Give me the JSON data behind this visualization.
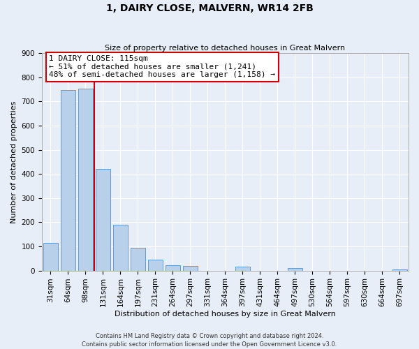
{
  "title": "1, DAIRY CLOSE, MALVERN, WR14 2FB",
  "subtitle": "Size of property relative to detached houses in Great Malvern",
  "xlabel": "Distribution of detached houses by size in Great Malvern",
  "ylabel": "Number of detached properties",
  "bar_labels": [
    "31sqm",
    "64sqm",
    "98sqm",
    "131sqm",
    "164sqm",
    "197sqm",
    "231sqm",
    "264sqm",
    "297sqm",
    "331sqm",
    "364sqm",
    "397sqm",
    "431sqm",
    "464sqm",
    "497sqm",
    "530sqm",
    "564sqm",
    "597sqm",
    "630sqm",
    "664sqm",
    "697sqm"
  ],
  "bar_values": [
    113,
    748,
    752,
    420,
    190,
    93,
    46,
    22,
    18,
    0,
    0,
    17,
    0,
    0,
    10,
    0,
    0,
    0,
    0,
    0,
    5
  ],
  "bar_color": "#b8d0ea",
  "bar_edge_color": "#6699cc",
  "property_line_label": "1 DAIRY CLOSE: 115sqm",
  "annotation_line1": "← 51% of detached houses are smaller (1,241)",
  "annotation_line2": "48% of semi-detached houses are larger (1,158) →",
  "annotation_box_facecolor": "#ffffff",
  "annotation_box_edgecolor": "#cc0000",
  "vline_color": "#cc0000",
  "ylim": [
    0,
    900
  ],
  "yticks": [
    0,
    100,
    200,
    300,
    400,
    500,
    600,
    700,
    800,
    900
  ],
  "footer_line1": "Contains HM Land Registry data © Crown copyright and database right 2024.",
  "footer_line2": "Contains public sector information licensed under the Open Government Licence v3.0.",
  "bg_color": "#e8eef8",
  "grid_color": "#ffffff",
  "title_fontsize": 10,
  "subtitle_fontsize": 8,
  "xlabel_fontsize": 8,
  "ylabel_fontsize": 8,
  "tick_fontsize": 7.5,
  "annotation_fontsize": 8,
  "footer_fontsize": 6
}
